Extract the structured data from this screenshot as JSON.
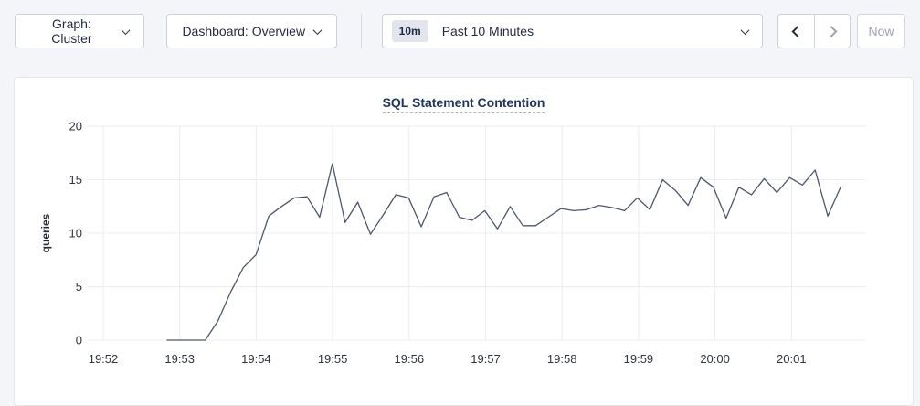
{
  "toolbar": {
    "graph_dropdown": {
      "label": "Graph: Cluster"
    },
    "dashboard_dropdown": {
      "label": "Dashboard: Overview"
    },
    "time_window": {
      "badge": "10m",
      "label": "Past 10 Minutes"
    },
    "now_button": {
      "label": "Now",
      "enabled": false
    },
    "prev_button": {
      "enabled": true
    },
    "next_button": {
      "enabled": false
    }
  },
  "colors": {
    "page_background": "#f4f5f9",
    "card_background": "#ffffff",
    "accent_text": "#1f2a47",
    "disabled_text": "#9aa2b3",
    "title_text": "#1e3564",
    "gridline": "#ececf1",
    "line": "#4b5670"
  },
  "chart_data": {
    "type": "line",
    "title": "SQL Statement Contention",
    "xlabel": "",
    "ylabel": "queries",
    "ylim": [
      0,
      20
    ],
    "yticks": [
      0,
      5,
      10,
      15,
      20
    ],
    "x_tick_labels": [
      "19:52",
      "19:53",
      "19:54",
      "19:55",
      "19:56",
      "19:57",
      "19:58",
      "19:59",
      "20:00",
      "20:01"
    ],
    "grid": true,
    "legend_position": "none",
    "series": [
      {
        "name": "queries",
        "x": [
          "19:52:50",
          "19:53:00",
          "19:53:10",
          "19:53:20",
          "19:53:30",
          "19:53:40",
          "19:53:50",
          "19:54:00",
          "19:54:10",
          "19:54:20",
          "19:54:30",
          "19:54:40",
          "19:54:50",
          "19:55:00",
          "19:55:10",
          "19:55:20",
          "19:55:30",
          "19:55:40",
          "19:55:50",
          "19:56:00",
          "19:56:10",
          "19:56:20",
          "19:56:30",
          "19:56:40",
          "19:56:50",
          "19:57:00",
          "19:57:10",
          "19:57:20",
          "19:57:30",
          "19:57:40",
          "19:57:50",
          "19:58:00",
          "19:58:10",
          "19:58:20",
          "19:58:30",
          "19:58:40",
          "19:58:50",
          "19:59:00",
          "19:59:10",
          "19:59:20",
          "19:59:30",
          "19:59:40",
          "19:59:50",
          "20:00:00",
          "20:00:10",
          "20:00:20",
          "20:00:30",
          "20:00:40",
          "20:00:50",
          "20:01:00",
          "20:01:10",
          "20:01:20",
          "20:01:30",
          "20:01:40"
        ],
        "values": [
          0,
          0,
          0,
          0,
          1.8,
          4.5,
          6.8,
          8.0,
          11.6,
          12.5,
          13.3,
          13.4,
          11.5,
          16.5,
          11.0,
          12.9,
          9.9,
          11.7,
          13.6,
          13.3,
          10.6,
          13.4,
          13.8,
          11.5,
          11.2,
          12.1,
          10.4,
          12.5,
          10.7,
          10.7,
          11.5,
          12.3,
          12.1,
          12.2,
          12.6,
          12.4,
          12.1,
          13.3,
          12.2,
          15.0,
          14.0,
          12.6,
          15.2,
          14.3,
          11.4,
          14.3,
          13.6,
          15.1,
          13.8,
          15.2,
          14.5,
          15.9,
          11.6,
          14.3
        ]
      }
    ]
  }
}
